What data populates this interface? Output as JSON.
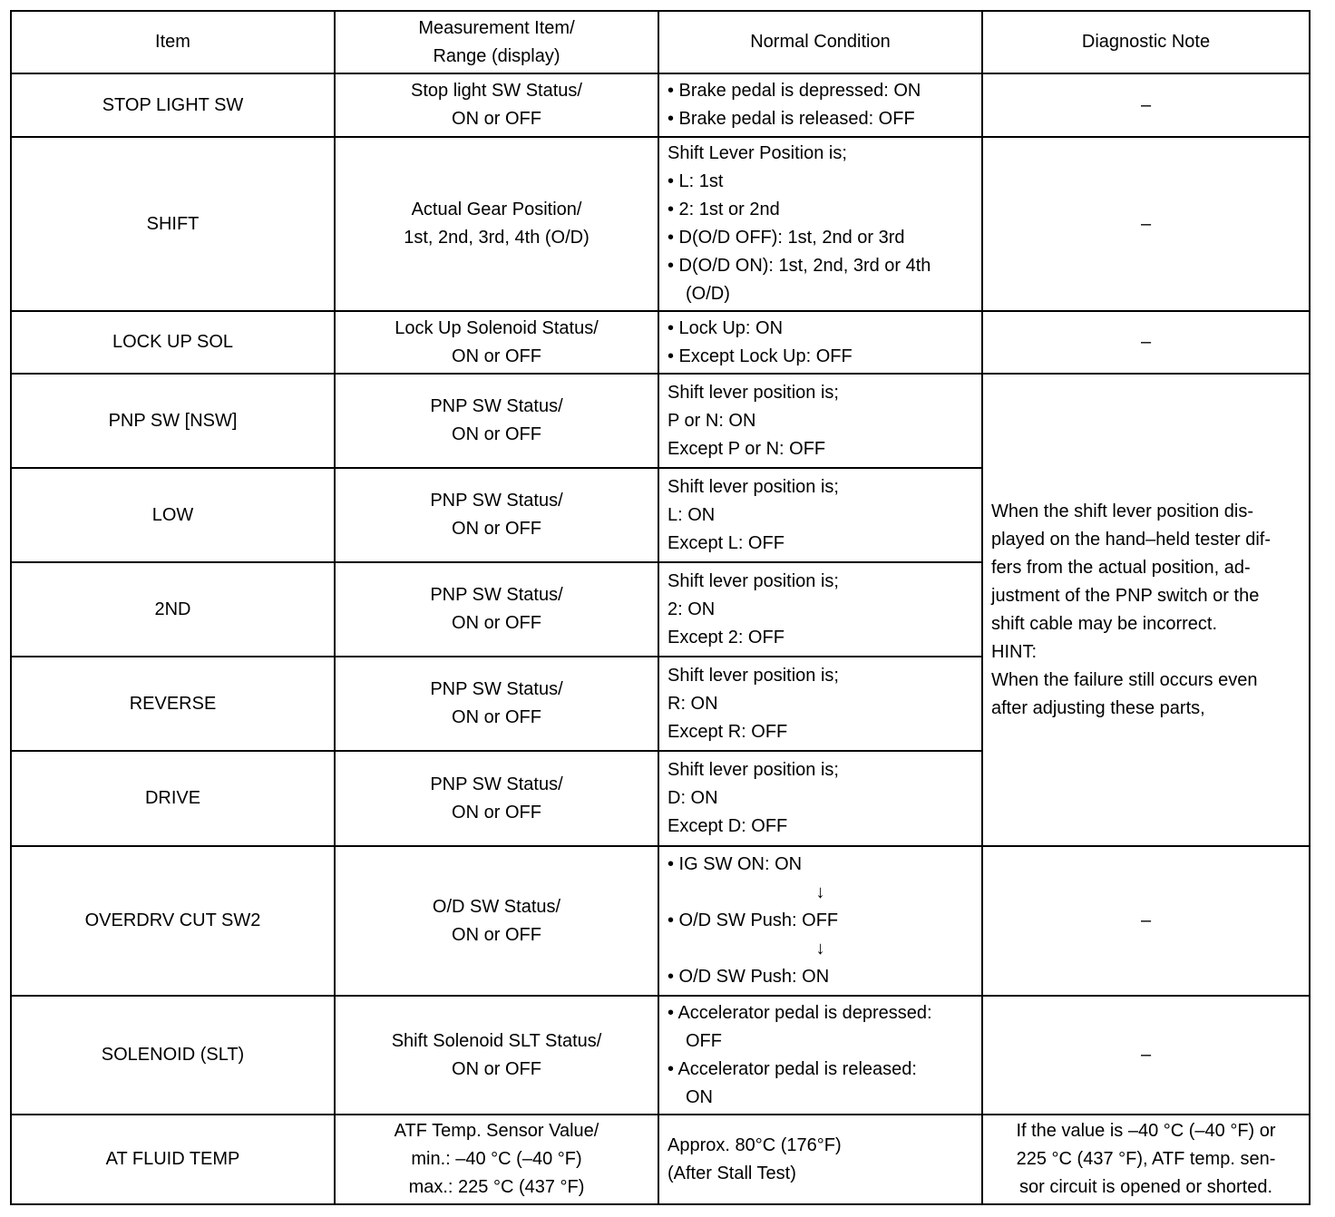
{
  "header": [
    "Item",
    "Measurement Item/\nRange (display)",
    "Normal Condition",
    "Diagnostic Note"
  ],
  "rows": [
    {
      "item": "STOP LIGHT SW",
      "measure": [
        "Stop light SW Status/",
        "ON or OFF"
      ],
      "condition": [
        "• Brake pedal is depressed: ON",
        "• Brake pedal is released: OFF"
      ],
      "note": [
        "–"
      ]
    },
    {
      "item": "SHIFT",
      "measure": [
        "Actual Gear Position/",
        "1st, 2nd, 3rd, 4th (O/D)"
      ],
      "condition": [
        "Shift Lever Position is;",
        "• L: 1st",
        "• 2: 1st or 2nd",
        "• D(O/D OFF): 1st, 2nd or 3rd",
        "• D(O/D ON): 1st, 2nd, 3rd or 4th",
        {
          "indent": "(O/D)"
        }
      ],
      "note": [
        "–"
      ]
    },
    {
      "item": "LOCK UP SOL",
      "measure": [
        "Lock Up Solenoid Status/",
        "ON or OFF"
      ],
      "condition": [
        "• Lock Up: ON",
        "• Except Lock Up: OFF"
      ],
      "note": [
        "–"
      ]
    },
    {
      "item": "PNP SW [NSW]",
      "measure": [
        "PNP SW Status/",
        "ON or OFF"
      ],
      "condition": [
        "Shift lever position is;",
        "P or N: ON",
        "Except P or N: OFF"
      ],
      "note": [
        "When the shift lever position dis-",
        "played on the hand–held tester dif-",
        "fers from the actual position, ad-",
        "justment of the PNP switch or the",
        "shift cable may be incorrect.",
        "HINT:",
        "When the failure still occurs even",
        "after adjusting these parts,"
      ],
      "note_rowspan": 5
    },
    {
      "item": "LOW",
      "measure": [
        "PNP SW Status/",
        "ON or OFF"
      ],
      "condition": [
        "Shift lever position is;",
        "L: ON",
        "Except L: OFF"
      ]
    },
    {
      "item": "2ND",
      "measure": [
        "PNP SW Status/",
        "ON or OFF"
      ],
      "condition": [
        "Shift lever position is;",
        "2: ON",
        "Except 2: OFF"
      ]
    },
    {
      "item": "REVERSE",
      "measure": [
        "PNP SW Status/",
        "ON or OFF"
      ],
      "condition": [
        "Shift lever position is;",
        "R: ON",
        "Except R: OFF"
      ]
    },
    {
      "item": "DRIVE",
      "measure": [
        "PNP SW Status/",
        "ON or OFF"
      ],
      "condition": [
        "Shift lever position is;",
        "D: ON",
        "Except D: OFF"
      ]
    },
    {
      "item": "OVERDRV CUT SW2",
      "measure": [
        "O/D SW Status/",
        "ON or OFF"
      ],
      "condition": [
        "• IG SW ON: ON",
        {
          "arrow": "↓"
        },
        "• O/D SW Push: OFF",
        {
          "arrow": "↓"
        },
        "• O/D SW Push: ON"
      ],
      "note": [
        "–"
      ]
    },
    {
      "item": "SOLENOID (SLT)",
      "measure": [
        "Shift Solenoid SLT Status/",
        "ON or OFF"
      ],
      "condition": [
        "• Accelerator pedal is depressed:",
        {
          "indent": "OFF"
        },
        "• Accelerator pedal is released:",
        {
          "indent": "ON"
        }
      ],
      "note": [
        "–"
      ]
    },
    {
      "item": "AT FLUID TEMP",
      "measure": [
        "ATF Temp. Sensor Value/",
        "min.: –40 °C (–40 °F)",
        "max.: 225 °C (437 °F)"
      ],
      "condition": [
        "Approx. 80°C (176°F)",
        "(After Stall Test)"
      ],
      "note": [
        "If the value is –40 °C (–40 °F) or",
        "225 °C (437 °F), ATF temp. sen-",
        "sor circuit is opened or shorted."
      ],
      "note_align": "center"
    }
  ]
}
